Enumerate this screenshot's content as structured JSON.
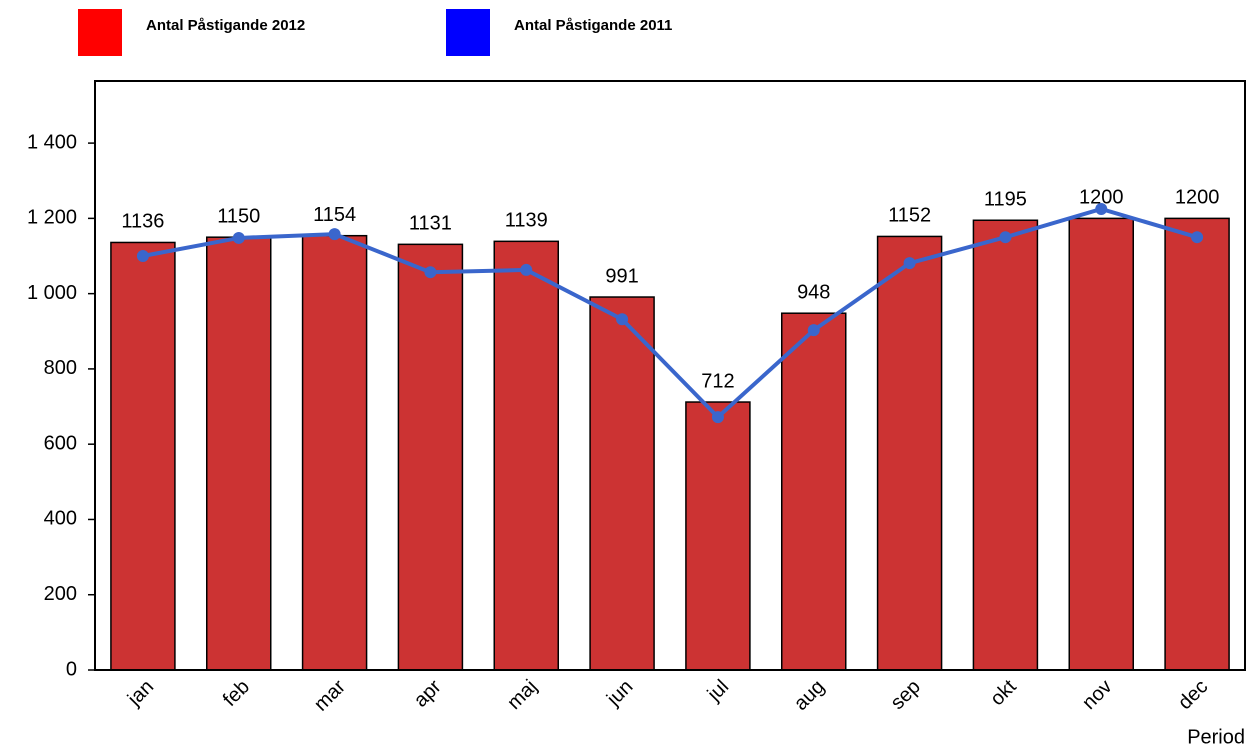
{
  "chart_data": {
    "type": "bar",
    "x_label": "Period",
    "categories": [
      "jan",
      "feb",
      "mar",
      "apr",
      "maj",
      "jun",
      "jul",
      "aug",
      "sep",
      "okt",
      "nov",
      "dec"
    ],
    "series": [
      {
        "name": "Antal Påstigande 2012",
        "type": "bar",
        "color": "#cc3333",
        "legend_color": "#ff0000",
        "values": [
          1136,
          1150,
          1154,
          1131,
          1139,
          991,
          712,
          948,
          1152,
          1195,
          1200,
          1200
        ]
      },
      {
        "name": "Antal Påstigande 2011",
        "type": "line",
        "color": "#3a66cc",
        "legend_color": "#0000ff",
        "values": [
          1100,
          1148,
          1158,
          1057,
          1063,
          932,
          672,
          903,
          1081,
          1150,
          1225,
          1150
        ]
      }
    ],
    "ylim": [
      0,
      1565
    ],
    "yticks": [
      0,
      200,
      400,
      600,
      800,
      {
        "value": 1000,
        "label": "1 000"
      },
      {
        "value": 1200,
        "label": "1 200"
      },
      {
        "value": 1400,
        "label": "1 400"
      }
    ]
  }
}
